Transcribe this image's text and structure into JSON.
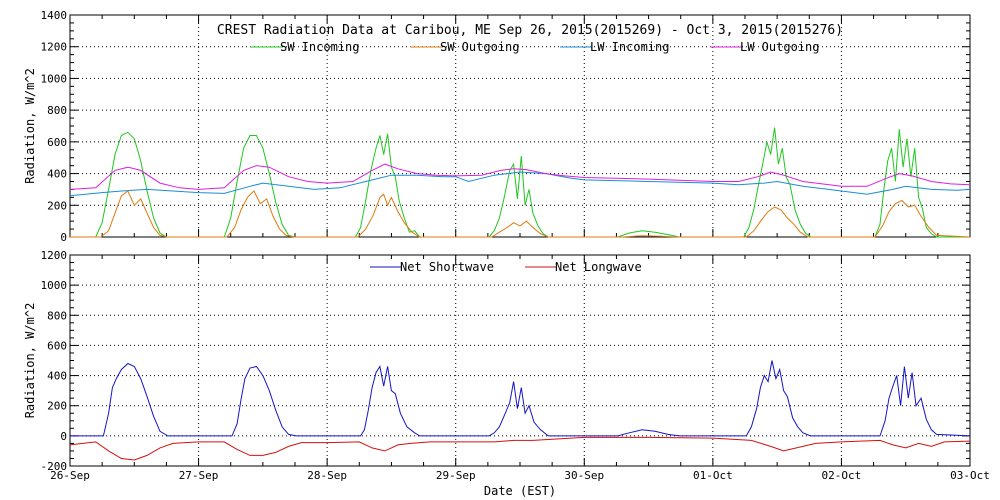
{
  "figure": {
    "title": "CREST Radiation Data at Caribou, ME   Sep 26, 2015(2015269) - Oct  3, 2015(2015276)",
    "xlabel": "Date (EST)"
  },
  "colors": {
    "sw_incoming": "#1fc81f",
    "sw_outgoing": "#e07a10",
    "lw_incoming": "#1a8ed6",
    "lw_outgoing": "#e01ee0",
    "net_shortwave": "#1515c8",
    "net_longwave": "#d41010",
    "axis": "#000000",
    "grid": "#000000"
  },
  "chart_data": [
    {
      "type": "line",
      "ylabel": "Radiation, W/m^2",
      "ylim": [
        0,
        1400
      ],
      "yticks": [
        0,
        200,
        400,
        600,
        800,
        1000,
        1200,
        1400
      ],
      "xlim": [
        0,
        7
      ],
      "grid": true,
      "legend": "top",
      "series": [
        {
          "name": "SW Incoming",
          "color_key": "sw_incoming",
          "x": [
            0,
            0.2,
            0.25,
            0.3,
            0.35,
            0.4,
            0.45,
            0.5,
            0.55,
            0.6,
            0.65,
            0.7,
            0.75,
            0.8,
            1.0,
            1.2,
            1.25,
            1.3,
            1.35,
            1.4,
            1.45,
            1.5,
            1.55,
            1.6,
            1.65,
            1.7,
            1.75,
            1.8,
            2.0,
            2.22,
            2.26,
            2.3,
            2.34,
            2.38,
            2.41,
            2.44,
            2.47,
            2.5,
            2.53,
            2.56,
            2.6,
            2.64,
            2.68,
            2.72,
            2.76,
            3.0,
            3.26,
            3.3,
            3.34,
            3.38,
            3.42,
            3.45,
            3.48,
            3.51,
            3.54,
            3.57,
            3.6,
            3.64,
            3.68,
            3.72,
            4.0,
            4.26,
            4.35,
            4.45,
            4.55,
            4.65,
            4.74,
            5.0,
            5.24,
            5.28,
            5.32,
            5.36,
            5.39,
            5.42,
            5.45,
            5.48,
            5.51,
            5.54,
            5.57,
            5.6,
            5.64,
            5.68,
            5.72,
            5.76,
            6.0,
            6.26,
            6.3,
            6.33,
            6.36,
            6.39,
            6.42,
            6.45,
            6.48,
            6.51,
            6.54,
            6.57,
            6.6,
            6.63,
            6.66,
            6.7,
            6.74,
            7.0
          ],
          "y": [
            0,
            0,
            90,
            300,
            520,
            640,
            660,
            620,
            480,
            290,
            120,
            25,
            0,
            0,
            0,
            0,
            120,
            350,
            560,
            640,
            640,
            560,
            400,
            220,
            80,
            10,
            0,
            0,
            0,
            0,
            60,
            230,
            420,
            560,
            640,
            520,
            650,
            440,
            380,
            230,
            120,
            30,
            40,
            0,
            0,
            0,
            0,
            40,
            120,
            260,
            420,
            460,
            240,
            510,
            200,
            300,
            150,
            70,
            20,
            0,
            0,
            0,
            25,
            40,
            30,
            15,
            0,
            0,
            0,
            60,
            180,
            350,
            470,
            600,
            520,
            690,
            460,
            560,
            380,
            330,
            170,
            80,
            25,
            0,
            0,
            0,
            80,
            300,
            480,
            560,
            350,
            680,
            440,
            620,
            380,
            560,
            250,
            180,
            60,
            20,
            0,
            0
          ]
        },
        {
          "name": "SW Outgoing",
          "color_key": "sw_outgoing",
          "x": [
            0,
            0.24,
            0.3,
            0.35,
            0.4,
            0.45,
            0.5,
            0.55,
            0.6,
            0.65,
            0.7,
            0.76,
            1.0,
            1.22,
            1.28,
            1.33,
            1.38,
            1.43,
            1.48,
            1.53,
            1.58,
            1.63,
            1.68,
            1.74,
            2.0,
            2.24,
            2.3,
            2.36,
            2.41,
            2.44,
            2.47,
            2.5,
            2.55,
            2.6,
            2.66,
            2.72,
            3.0,
            3.28,
            3.34,
            3.4,
            3.45,
            3.5,
            3.55,
            3.6,
            3.66,
            3.72,
            4.0,
            4.3,
            4.45,
            4.6,
            4.72,
            5.0,
            5.26,
            5.32,
            5.38,
            5.43,
            5.48,
            5.53,
            5.58,
            5.63,
            5.68,
            5.74,
            6.0,
            6.26,
            6.32,
            6.37,
            6.42,
            6.47,
            6.52,
            6.57,
            6.62,
            6.68,
            6.74,
            7.0
          ],
          "y": [
            0,
            0,
            40,
            150,
            260,
            290,
            200,
            240,
            150,
            60,
            10,
            0,
            0,
            0,
            60,
            170,
            250,
            290,
            210,
            240,
            130,
            50,
            10,
            0,
            0,
            0,
            50,
            140,
            250,
            270,
            200,
            250,
            160,
            90,
            30,
            0,
            0,
            0,
            30,
            60,
            90,
            70,
            100,
            60,
            20,
            0,
            0,
            0,
            8,
            5,
            0,
            0,
            0,
            40,
            110,
            160,
            190,
            170,
            120,
            80,
            30,
            0,
            0,
            0,
            70,
            160,
            210,
            230,
            190,
            200,
            130,
            60,
            10,
            0
          ]
        },
        {
          "name": "LW Incoming",
          "color_key": "lw_incoming",
          "x": [
            0,
            0.25,
            0.4,
            0.6,
            0.8,
            1.0,
            1.2,
            1.4,
            1.5,
            1.7,
            1.9,
            2.1,
            2.3,
            2.5,
            2.7,
            2.9,
            3.0,
            3.1,
            3.3,
            3.5,
            3.7,
            3.9,
            4.0,
            4.5,
            5.0,
            5.2,
            5.4,
            5.5,
            5.7,
            5.9,
            6.0,
            6.2,
            6.4,
            6.5,
            6.7,
            6.9,
            7.0
          ],
          "y": [
            260,
            280,
            290,
            300,
            290,
            280,
            275,
            320,
            340,
            320,
            300,
            310,
            350,
            390,
            390,
            380,
            380,
            350,
            390,
            410,
            400,
            370,
            360,
            350,
            340,
            330,
            340,
            350,
            320,
            300,
            290,
            270,
            300,
            320,
            300,
            295,
            300
          ]
        },
        {
          "name": "LW Outgoing",
          "color_key": "lw_outgoing",
          "x": [
            0,
            0.2,
            0.35,
            0.45,
            0.55,
            0.7,
            0.85,
            1.0,
            1.2,
            1.35,
            1.45,
            1.55,
            1.7,
            1.85,
            2.0,
            2.2,
            2.35,
            2.45,
            2.55,
            2.7,
            2.85,
            3.0,
            3.2,
            3.35,
            3.45,
            3.55,
            3.7,
            3.85,
            4.0,
            4.5,
            5.0,
            5.2,
            5.35,
            5.45,
            5.55,
            5.7,
            5.85,
            6.0,
            6.2,
            6.35,
            6.45,
            6.55,
            6.7,
            6.85,
            7.0
          ],
          "y": [
            300,
            310,
            420,
            440,
            420,
            340,
            310,
            300,
            310,
            420,
            450,
            440,
            380,
            350,
            340,
            350,
            420,
            460,
            430,
            400,
            390,
            385,
            390,
            420,
            430,
            425,
            400,
            385,
            375,
            365,
            350,
            350,
            380,
            410,
            390,
            350,
            335,
            320,
            320,
            370,
            400,
            385,
            350,
            335,
            330
          ]
        }
      ]
    },
    {
      "type": "line",
      "ylabel": "Radiation, W/m^2",
      "xlabel": "Date (EST)",
      "ylim": [
        -200,
        1200
      ],
      "yticks": [
        -200,
        0,
        200,
        400,
        600,
        800,
        1000,
        1200
      ],
      "xlim": [
        0,
        7
      ],
      "grid": true,
      "legend": "top",
      "x_tick_labels": [
        "26-Sep",
        "27-Sep",
        "28-Sep",
        "29-Sep",
        "30-Sep",
        "01-Oct",
        "02-Oct",
        "03-Oct"
      ],
      "series": [
        {
          "name": "Net Shortwave",
          "color_key": "net_shortwave",
          "x": [
            0,
            0.26,
            0.3,
            0.33,
            0.36,
            0.4,
            0.45,
            0.5,
            0.55,
            0.6,
            0.65,
            0.7,
            0.76,
            1.0,
            1.26,
            1.3,
            1.33,
            1.36,
            1.4,
            1.45,
            1.5,
            1.55,
            1.6,
            1.65,
            1.7,
            1.76,
            2.0,
            2.26,
            2.29,
            2.32,
            2.35,
            2.38,
            2.41,
            2.44,
            2.47,
            2.5,
            2.53,
            2.57,
            2.62,
            2.68,
            2.72,
            3.0,
            3.26,
            3.3,
            3.34,
            3.38,
            3.42,
            3.45,
            3.48,
            3.51,
            3.54,
            3.57,
            3.61,
            3.66,
            3.72,
            4.0,
            4.26,
            4.35,
            4.45,
            4.55,
            4.65,
            4.74,
            5.0,
            5.26,
            5.3,
            5.34,
            5.37,
            5.4,
            5.43,
            5.46,
            5.49,
            5.52,
            5.55,
            5.58,
            5.62,
            5.66,
            5.7,
            5.76,
            6.0,
            6.3,
            6.34,
            6.37,
            6.4,
            6.43,
            6.46,
            6.49,
            6.52,
            6.55,
            6.58,
            6.62,
            6.66,
            6.7,
            6.74,
            7.0
          ],
          "y": [
            0,
            0,
            150,
            320,
            380,
            440,
            480,
            460,
            380,
            260,
            130,
            30,
            0,
            0,
            0,
            80,
            240,
            380,
            450,
            460,
            400,
            300,
            170,
            60,
            10,
            0,
            0,
            0,
            40,
            170,
            320,
            420,
            460,
            330,
            460,
            300,
            280,
            150,
            60,
            20,
            0,
            0,
            0,
            20,
            60,
            140,
            220,
            360,
            180,
            320,
            150,
            200,
            90,
            40,
            0,
            0,
            0,
            20,
            40,
            30,
            10,
            0,
            0,
            0,
            60,
            180,
            320,
            400,
            360,
            500,
            380,
            440,
            300,
            260,
            120,
            60,
            20,
            0,
            0,
            0,
            100,
            250,
            330,
            400,
            200,
            460,
            250,
            420,
            200,
            250,
            110,
            40,
            10,
            0
          ]
        },
        {
          "name": "Net Longwave",
          "color_key": "net_longwave",
          "x": [
            0,
            0.2,
            0.3,
            0.4,
            0.5,
            0.6,
            0.7,
            0.8,
            1.0,
            1.2,
            1.3,
            1.4,
            1.5,
            1.6,
            1.7,
            1.8,
            2.0,
            2.25,
            2.35,
            2.45,
            2.55,
            2.65,
            2.8,
            3.0,
            3.3,
            3.45,
            3.6,
            3.8,
            4.0,
            4.5,
            5.0,
            5.3,
            5.45,
            5.55,
            5.65,
            5.8,
            6.0,
            6.3,
            6.4,
            6.5,
            6.6,
            6.7,
            6.8,
            7.0
          ],
          "y": [
            -60,
            -40,
            -100,
            -150,
            -160,
            -130,
            -80,
            -50,
            -40,
            -40,
            -90,
            -130,
            -130,
            -110,
            -70,
            -45,
            -45,
            -40,
            -80,
            -100,
            -60,
            -50,
            -40,
            -40,
            -40,
            -30,
            -30,
            -20,
            -10,
            -10,
            -15,
            -30,
            -70,
            -100,
            -80,
            -50,
            -40,
            -30,
            -60,
            -80,
            -50,
            -70,
            -40,
            -35
          ]
        }
      ]
    }
  ]
}
